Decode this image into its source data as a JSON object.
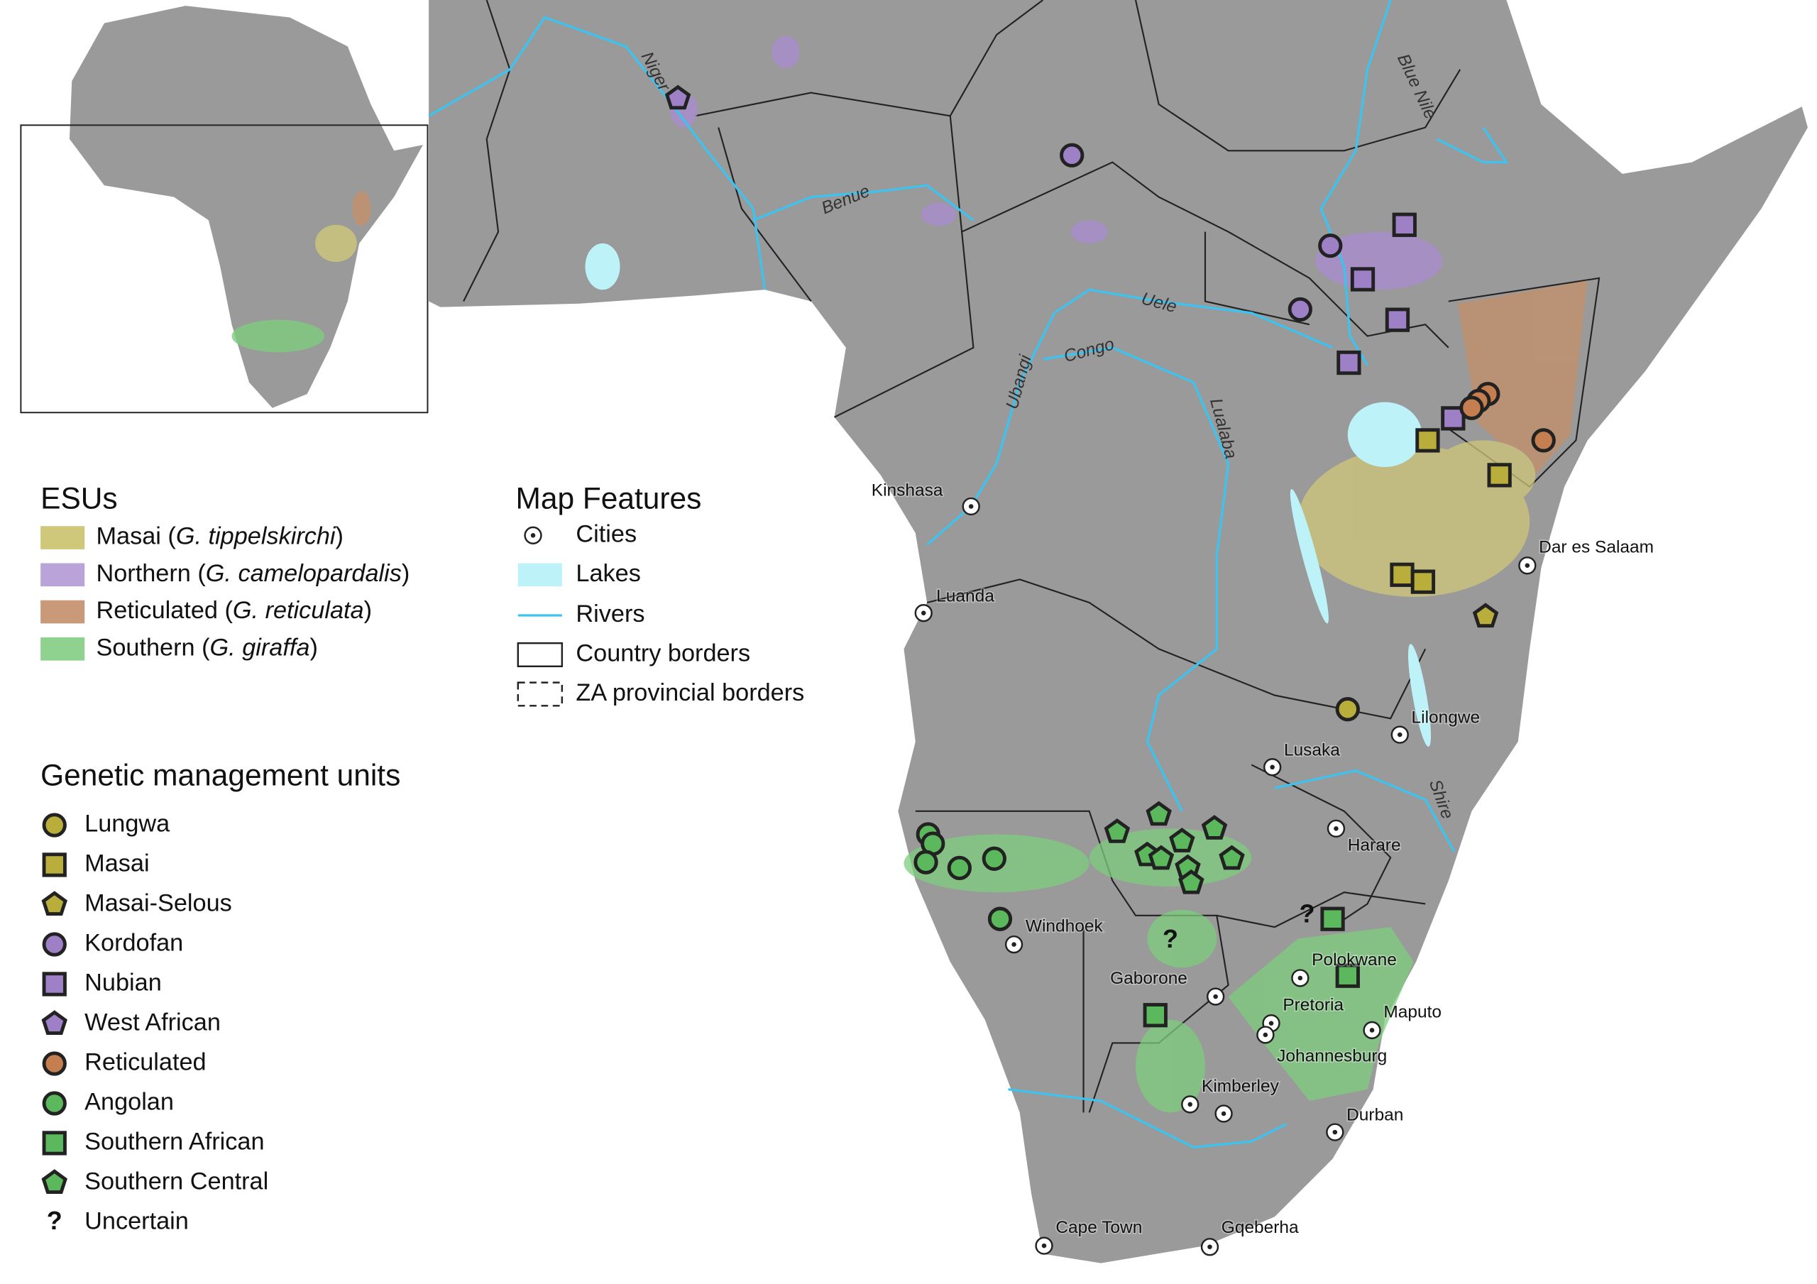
{
  "esu_legend": {
    "title": "ESUs",
    "items": [
      [
        "Masai (",
        "G. tippelskirchi",
        ")"
      ],
      [
        "Northern (",
        "G. camelopardalis",
        ")"
      ],
      [
        "Reticulated (",
        "G. reticulata",
        ")"
      ],
      [
        "Southern (",
        "G. giraffa",
        ")"
      ]
    ]
  },
  "map_features": {
    "title": "Map Features",
    "items": [
      "Cities",
      "Lakes",
      "Rivers",
      "Country borders",
      "ZA provincial borders"
    ]
  },
  "gmu_legend": {
    "title": "Genetic management units",
    "items": [
      "Lungwa",
      "Masai",
      "Masai-Selous",
      "Kordofan",
      "Nubian",
      "West African",
      "Reticulated",
      "Angolan",
      "Southern African",
      "Southern Central",
      "Uncertain"
    ],
    "uncertain_symbol": "?"
  },
  "cities": [
    "Kinshasa",
    "Luanda",
    "Dar es Salaam",
    "Lilongwe",
    "Lusaka",
    "Harare",
    "Windhoek",
    "Gaborone",
    "Polokwane",
    "Pretoria",
    "Johannesburg",
    "Maputo",
    "Kimberley",
    "Durban",
    "Cape Town",
    "Gqeberha"
  ],
  "rivers": [
    "Niger",
    "Benue",
    "Blue Nile",
    "Uele",
    "Ubangi",
    "Congo",
    "Lualaba",
    "Shire"
  ]
}
